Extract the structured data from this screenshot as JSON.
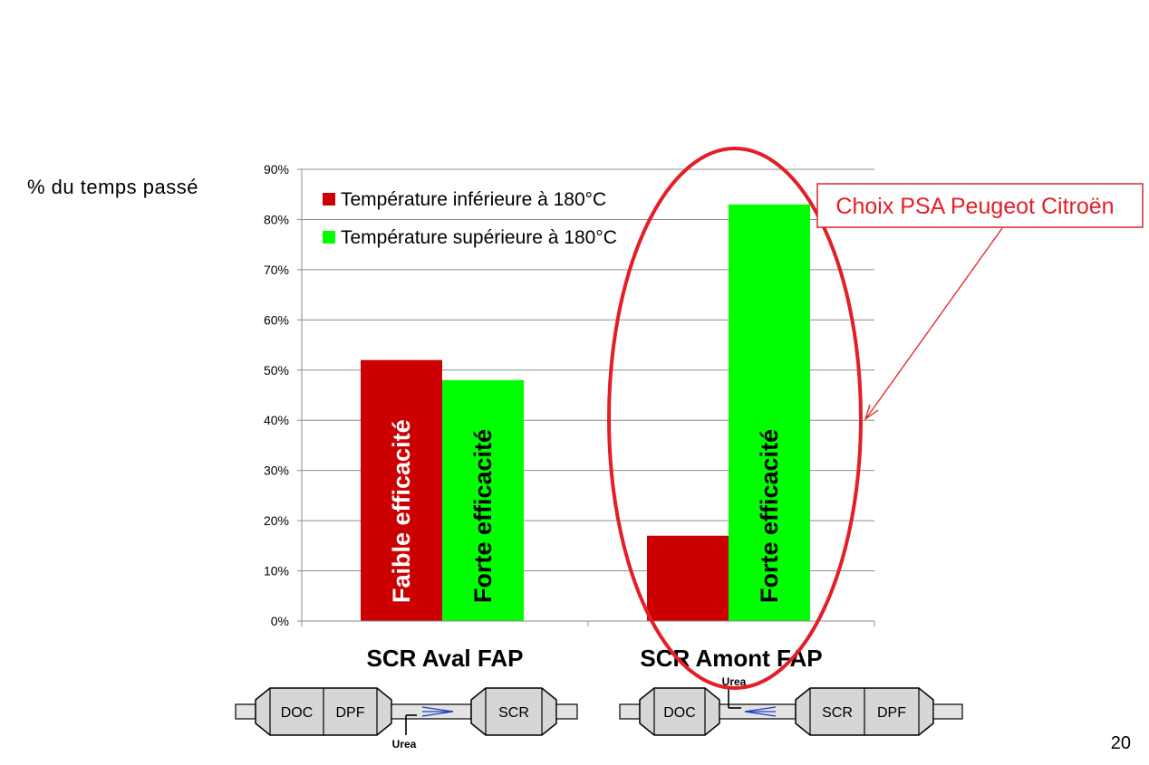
{
  "slide": {
    "y_axis_label": "% du temps passé",
    "page_number": "20",
    "callout": "Choix PSA Peugeot Citroën"
  },
  "colors": {
    "red": "#cc0000",
    "green": "#00ff00",
    "highlight": "#e41e26",
    "callout_border": "#d8262e",
    "grid": "#8c8c8c"
  },
  "chart_data": {
    "type": "bar",
    "categories": [
      "SCR Aval FAP",
      "SCR  Amont FAP"
    ],
    "series": [
      {
        "name": "Température inférieure à 180°C",
        "values": [
          52,
          17
        ],
        "color": "#cc0000",
        "bar_labels": [
          "Faible efficacité",
          ""
        ]
      },
      {
        "name": "Température supérieure à 180°C",
        "values": [
          48,
          83
        ],
        "color": "#00ff00",
        "bar_labels": [
          "Forte efficacité",
          "Forte efficacité"
        ]
      }
    ],
    "ylim": [
      0,
      90
    ],
    "yticks": [
      0,
      10,
      20,
      30,
      40,
      50,
      60,
      70,
      80,
      90
    ],
    "ytick_labels": [
      "0%",
      "10%",
      "20%",
      "30%",
      "40%",
      "50%",
      "60%",
      "70%",
      "80%",
      "90%"
    ],
    "grid": true,
    "legend": "top-left"
  },
  "diagrams": {
    "left": {
      "boxes": [
        "DOC",
        "DPF",
        "SCR"
      ],
      "injector": "Urea"
    },
    "right": {
      "boxes": [
        "DOC",
        "SCR",
        "DPF"
      ],
      "injector": "Urea"
    }
  }
}
